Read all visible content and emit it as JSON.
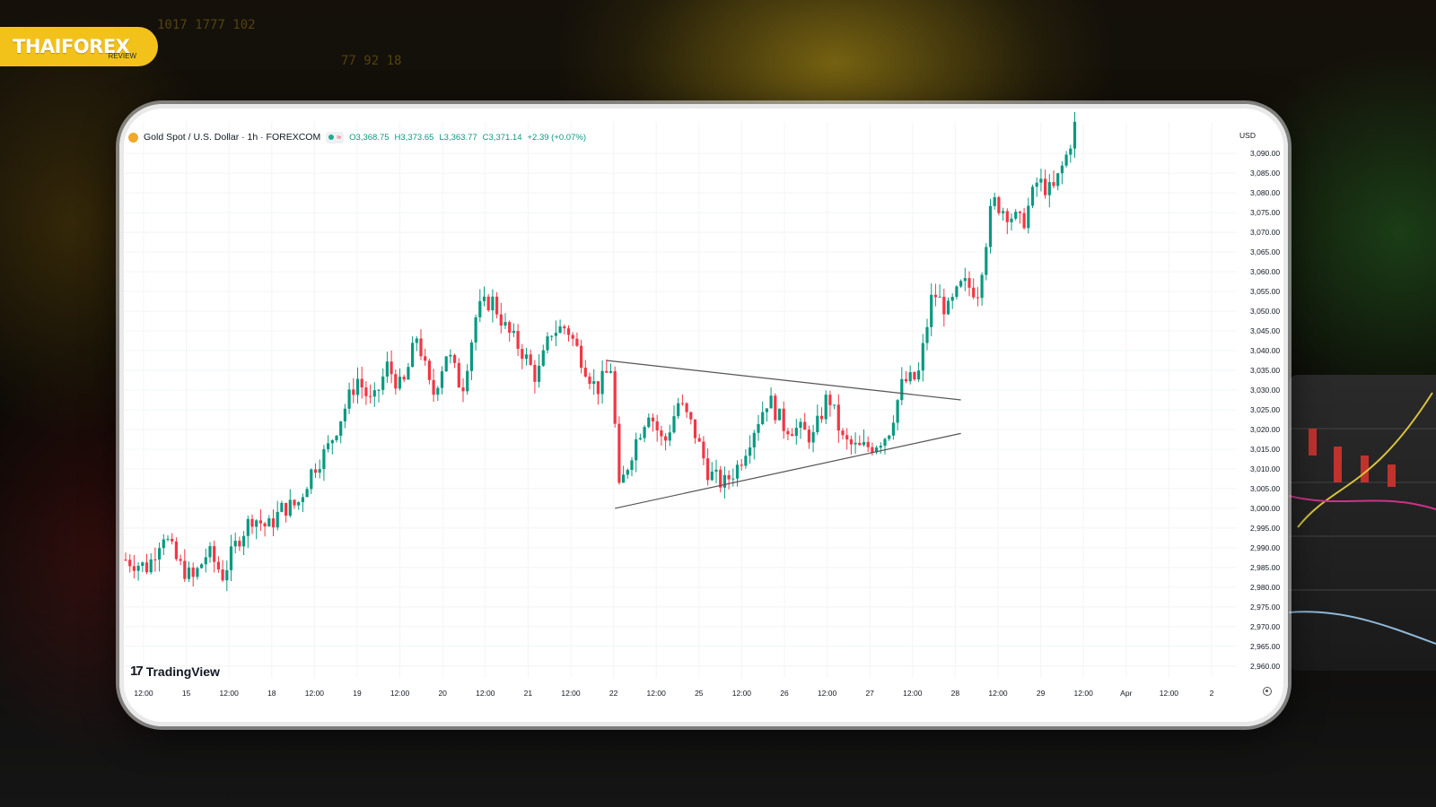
{
  "brand": {
    "logo_text": "THAIFOREX",
    "logo_sub": "REVIEW"
  },
  "legend": {
    "symbol": "Gold Spot / U.S. Dollar · 1h · FOREXCOM",
    "open": "O3,368.75",
    "high": "H3,373.65",
    "low": "L3,363.77",
    "close": "C3,371.14",
    "change": "+2.39 (+0.07%)",
    "pill_wave": "≈"
  },
  "watermark": "TradingView",
  "colors": {
    "up": "#089981",
    "down": "#f23645",
    "brand": "#f2c21a",
    "trendline": "#555555"
  },
  "icons": [
    "gold-coin-icon",
    "live-status-icon",
    "tradingview-logo-icon",
    "settings-icon"
  ],
  "chart_data": {
    "type": "candlestick",
    "currency": "USD",
    "ylim": [
      2957,
      3098
    ],
    "y_ticks": [
      2960,
      2965,
      2970,
      2975,
      2980,
      2985,
      2990,
      2995,
      3000,
      3005,
      3010,
      3015,
      3020,
      3025,
      3030,
      3035,
      3040,
      3045,
      3050,
      3055,
      3060,
      3065,
      3070,
      3075,
      3080,
      3085,
      3090
    ],
    "y_tick_labels": [
      "2,960.00",
      "2,965.00",
      "2,970.00",
      "2,975.00",
      "2,980.00",
      "2,985.00",
      "2,990.00",
      "2,995.00",
      "3,000.00",
      "3,005.00",
      "3,010.00",
      "3,015.00",
      "3,020.00",
      "3,025.00",
      "3,030.00",
      "3,035.00",
      "3,040.00",
      "3,045.00",
      "3,050.00",
      "3,055.00",
      "3,060.00",
      "3,065.00",
      "3,070.00",
      "3,075.00",
      "3,080.00",
      "3,085.00",
      "3,090.00"
    ],
    "x_tick_labels": [
      "12:00",
      "15",
      "12:00",
      "18",
      "12:00",
      "19",
      "12:00",
      "20",
      "12:00",
      "21",
      "12:00",
      "22",
      "12:00",
      "25",
      "12:00",
      "26",
      "12:00",
      "27",
      "12:00",
      "28",
      "12:00",
      "29",
      "12:00",
      "Apr",
      "12:00",
      "2"
    ],
    "price_path": [
      [
        0,
        2987
      ],
      [
        3,
        2985
      ],
      [
        5,
        2994
      ],
      [
        7,
        2986
      ],
      [
        9,
        2982
      ],
      [
        11,
        2989
      ],
      [
        13,
        2983
      ],
      [
        15,
        2992
      ],
      [
        17,
        2998
      ],
      [
        19,
        2995
      ],
      [
        21,
        3000
      ],
      [
        23,
        3001
      ],
      [
        25,
        3010
      ],
      [
        27,
        3015
      ],
      [
        29,
        3024
      ],
      [
        31,
        3033
      ],
      [
        33,
        3026
      ],
      [
        35,
        3036
      ],
      [
        37,
        3030
      ],
      [
        39,
        3044
      ],
      [
        41,
        3028
      ],
      [
        43,
        3040
      ],
      [
        45,
        3030
      ],
      [
        47,
        3050
      ],
      [
        49,
        3053
      ],
      [
        51,
        3045
      ],
      [
        53,
        3040
      ],
      [
        55,
        3033
      ],
      [
        57,
        3045
      ],
      [
        59,
        3046
      ],
      [
        61,
        3038
      ],
      [
        63,
        3030
      ],
      [
        65,
        3036
      ],
      [
        66,
        3004
      ],
      [
        68,
        3016
      ],
      [
        70,
        3025
      ],
      [
        72,
        3016
      ],
      [
        74,
        3027
      ],
      [
        76,
        3020
      ],
      [
        78,
        3009
      ],
      [
        80,
        3006
      ],
      [
        82,
        3011
      ],
      [
        84,
        3020
      ],
      [
        86,
        3028
      ],
      [
        88,
        3021
      ],
      [
        90,
        3020
      ],
      [
        92,
        3018
      ],
      [
        94,
        3029
      ],
      [
        96,
        3017
      ],
      [
        98,
        3015
      ],
      [
        100,
        3016
      ],
      [
        102,
        3019
      ],
      [
        104,
        3032
      ],
      [
        106,
        3033
      ],
      [
        108,
        3055
      ],
      [
        110,
        3050
      ],
      [
        112,
        3057
      ],
      [
        114,
        3055
      ],
      [
        116,
        3078
      ],
      [
        118,
        3075
      ],
      [
        120,
        3072
      ],
      [
        122,
        3083
      ],
      [
        124,
        3080
      ],
      [
        126,
        3090
      ],
      [
        127,
        3097
      ]
    ],
    "annotations": {
      "triangle_upper": [
        [
          3037.5,
          "Mar 21 ~19:00"
        ],
        [
          3027.5,
          "Mar 27 ~19:00"
        ]
      ],
      "triangle_lower": [
        [
          3000,
          "Mar 21 ~21:00"
        ],
        [
          3019,
          "Mar 27 ~19:00"
        ]
      ]
    }
  }
}
